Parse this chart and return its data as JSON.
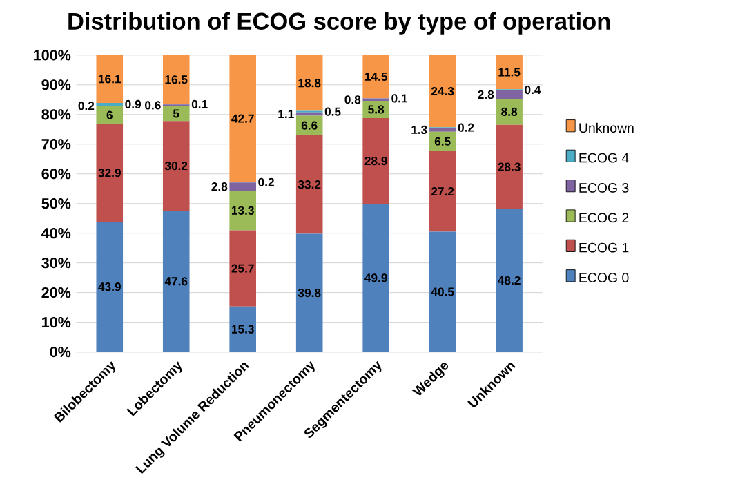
{
  "chart_data": {
    "type": "bar",
    "stacked": true,
    "title": "Distribution of ECOG score by type of operation",
    "categories": [
      "Bilobectomy",
      "Lobectomy",
      "Lung Volume Reduction",
      "Pneumonectomy",
      "Segmentectomy",
      "Wedge",
      "Unknown"
    ],
    "series": [
      {
        "name": "ECOG 0",
        "color": "#4f81bd",
        "values": [
          43.9,
          47.6,
          15.3,
          39.8,
          49.9,
          40.5,
          48.2
        ]
      },
      {
        "name": "ECOG 1",
        "color": "#c0504d",
        "values": [
          32.9,
          30.2,
          25.7,
          33.2,
          28.9,
          27.2,
          28.3
        ]
      },
      {
        "name": "ECOG 2",
        "color": "#9bbb59",
        "values": [
          6,
          5,
          13.3,
          6.6,
          5.8,
          6.5,
          8.8
        ]
      },
      {
        "name": "ECOG 3",
        "color": "#8064a2",
        "values": [
          0.2,
          0.6,
          2.8,
          1.1,
          0.8,
          1.3,
          2.8
        ]
      },
      {
        "name": "ECOG 4",
        "color": "#4bacc6",
        "values": [
          0.9,
          0.1,
          0.2,
          0.5,
          0.1,
          0.2,
          0.4
        ]
      },
      {
        "name": "Unknown",
        "color": "#f79646",
        "values": [
          16.1,
          16.5,
          42.7,
          18.8,
          14.5,
          24.3,
          11.5
        ]
      }
    ],
    "ylim": [
      0,
      100
    ],
    "yticks": [
      {
        "value": 0,
        "label": "0%"
      },
      {
        "value": 10,
        "label": "10%"
      },
      {
        "value": 20,
        "label": "20%"
      },
      {
        "value": 30,
        "label": "30%"
      },
      {
        "value": 40,
        "label": "40%"
      },
      {
        "value": 50,
        "label": "50%"
      },
      {
        "value": 60,
        "label": "60%"
      },
      {
        "value": 70,
        "label": "70%"
      },
      {
        "value": 80,
        "label": "80%"
      },
      {
        "value": 90,
        "label": "90%"
      },
      {
        "value": 100,
        "label": "100%"
      }
    ],
    "grid": "y",
    "legend": "right",
    "data_labels": true
  }
}
